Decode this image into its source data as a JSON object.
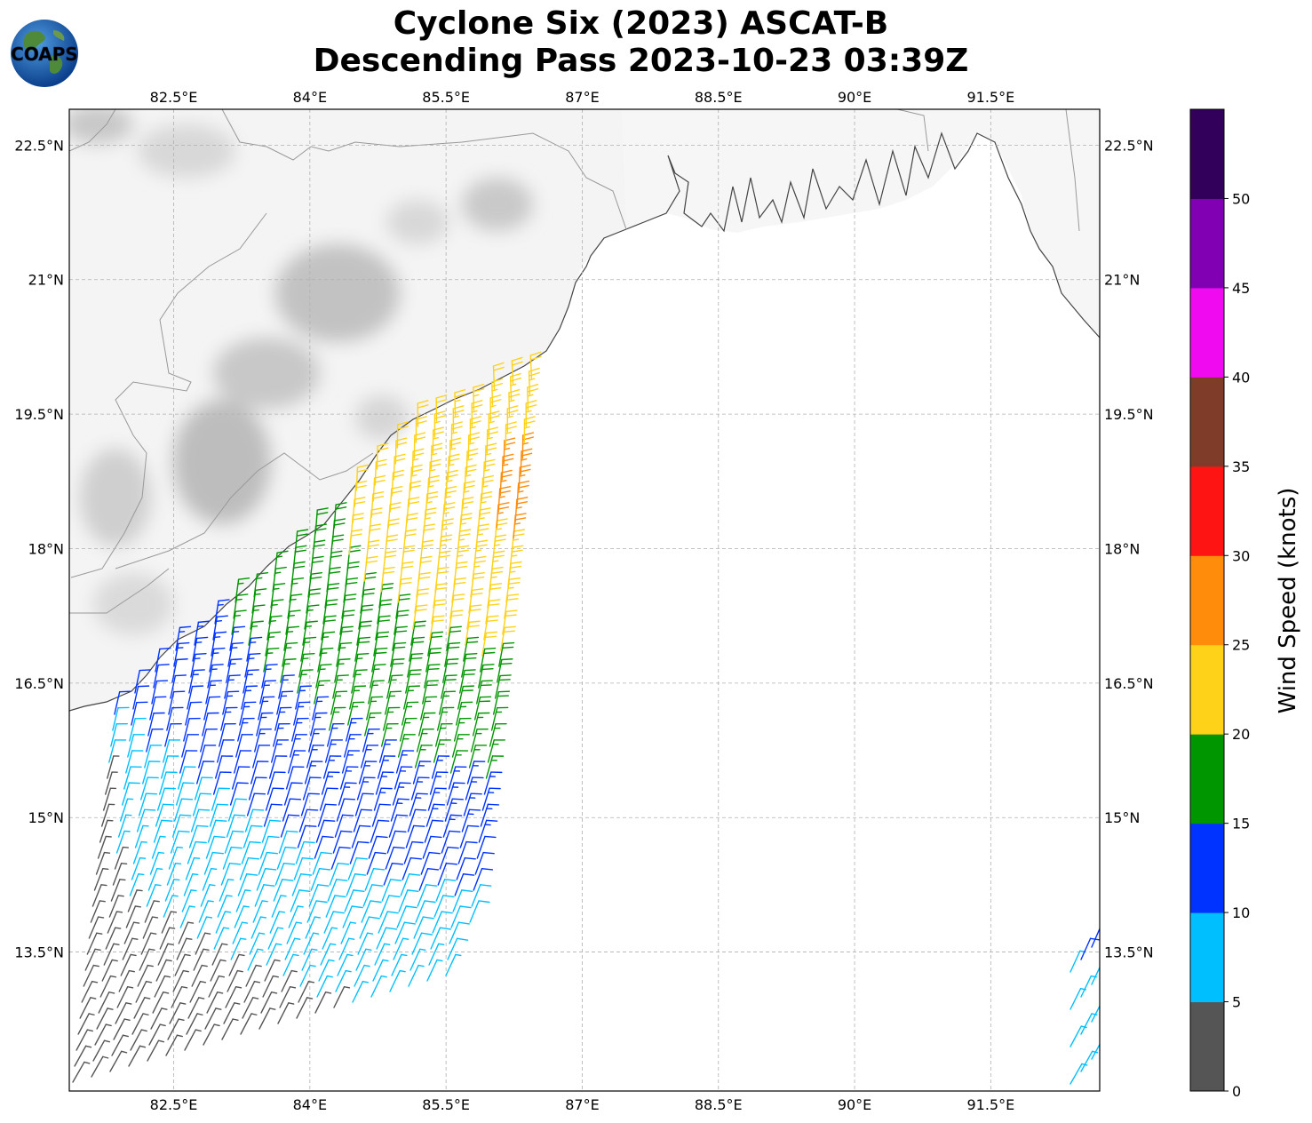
{
  "title": {
    "line1": "Cyclone Six (2023) ASCAT-B",
    "line2": "Descending Pass 2023-10-23 03:39Z"
  },
  "logo": {
    "text": "COAPS",
    "icon": "coaps-globe-logo"
  },
  "map": {
    "lon_range": [
      81.35,
      92.7
    ],
    "lat_range": [
      11.95,
      22.9
    ],
    "lon_ticks": [
      "82.5°E",
      "84°E",
      "85.5°E",
      "87°E",
      "88.5°E",
      "90°E",
      "91.5°E"
    ],
    "lat_ticks": [
      "22.5°N",
      "21°N",
      "19.5°N",
      "18°N",
      "16.5°N",
      "15°N",
      "13.5°N"
    ],
    "gridlines": true
  },
  "colorbar": {
    "label": "Wind Speed (knots)",
    "ticks": [
      "0",
      "5",
      "10",
      "15",
      "20",
      "25",
      "30",
      "35",
      "40",
      "45",
      "50"
    ],
    "bins": [
      {
        "range": "0-5",
        "color": "#555555"
      },
      {
        "range": "5-10",
        "color": "#00bfff"
      },
      {
        "range": "10-15",
        "color": "#0033ff"
      },
      {
        "range": "15-20",
        "color": "#009600"
      },
      {
        "range": "20-25",
        "color": "#ffd21a"
      },
      {
        "range": "25-30",
        "color": "#ff8c0a"
      },
      {
        "range": "30-35",
        "color": "#ff1414"
      },
      {
        "range": "35-40",
        "color": "#7f3c28"
      },
      {
        "range": "40-45",
        "color": "#f00af0"
      },
      {
        "range": "45-50",
        "color": "#8200b4"
      },
      {
        "range": "50+",
        "color": "#32005a"
      }
    ]
  }
}
